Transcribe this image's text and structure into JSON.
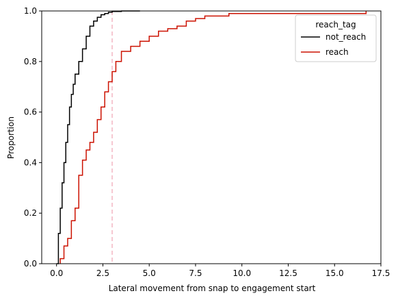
{
  "chart_data": {
    "type": "line",
    "xlabel": "Lateral movement from snap to engagement start",
    "ylabel": "Proportion",
    "xlim": [
      -0.8,
      17.5
    ],
    "ylim": [
      0,
      1
    ],
    "x_ticks": [
      0,
      2.5,
      5,
      7.5,
      10,
      12.5,
      15,
      17.5
    ],
    "x_tick_labels": [
      "0.0",
      "2.5",
      "5.0",
      "7.5",
      "10.0",
      "12.5",
      "15.0",
      "17.5"
    ],
    "y_ticks": [
      0,
      0.2,
      0.4,
      0.6,
      0.8,
      1.0
    ],
    "y_tick_labels": [
      "0.0",
      "0.2",
      "0.4",
      "0.6",
      "0.8",
      "1.0"
    ],
    "grid": false,
    "legend": {
      "title": "reach_tag",
      "placement": "top-right"
    },
    "reference_line": {
      "x": 3.0,
      "color": "#f4b6c2",
      "style": "dashed"
    },
    "series": [
      {
        "name": "not_reach",
        "color": "#000000",
        "x": [
          0.0,
          0.1,
          0.2,
          0.3,
          0.4,
          0.5,
          0.6,
          0.7,
          0.8,
          0.9,
          1.0,
          1.2,
          1.4,
          1.6,
          1.8,
          2.0,
          2.2,
          2.4,
          2.6,
          2.8,
          3.0,
          3.5,
          4.5
        ],
        "y": [
          0.0,
          0.12,
          0.22,
          0.32,
          0.4,
          0.48,
          0.55,
          0.62,
          0.67,
          0.71,
          0.75,
          0.8,
          0.85,
          0.9,
          0.94,
          0.96,
          0.975,
          0.985,
          0.99,
          0.995,
          0.998,
          1.0,
          1.0
        ]
      },
      {
        "name": "reach",
        "color": "#cc1100",
        "x": [
          0.2,
          0.4,
          0.6,
          0.8,
          1.0,
          1.2,
          1.4,
          1.6,
          1.8,
          2.0,
          2.2,
          2.4,
          2.6,
          2.8,
          3.0,
          3.2,
          3.5,
          4.0,
          4.5,
          5.0,
          5.5,
          6.0,
          6.5,
          7.0,
          7.5,
          8.0,
          9.3,
          16.7
        ],
        "y": [
          0.02,
          0.07,
          0.1,
          0.17,
          0.22,
          0.35,
          0.41,
          0.45,
          0.48,
          0.52,
          0.57,
          0.62,
          0.68,
          0.72,
          0.76,
          0.8,
          0.84,
          0.86,
          0.88,
          0.9,
          0.92,
          0.93,
          0.94,
          0.96,
          0.97,
          0.98,
          0.99,
          1.0
        ]
      }
    ]
  }
}
